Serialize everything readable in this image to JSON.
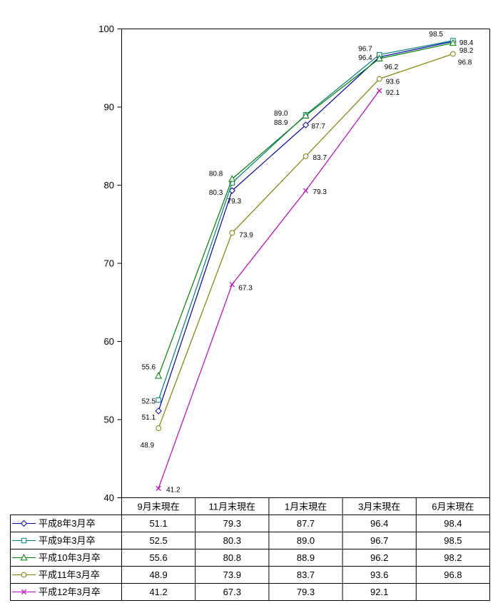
{
  "chart_data": {
    "type": "line",
    "title": "",
    "xlabel": "",
    "ylabel": "",
    "ylim": [
      40,
      100
    ],
    "ytick_step": 10,
    "yticks": [
      "100",
      "90",
      "80",
      "70",
      "60",
      "50",
      "40"
    ],
    "grid": false,
    "data_labels": true,
    "legend_position": "data-table-left-column",
    "value_format": "one-decimal",
    "categories": [
      "9月末現在",
      "11月末現在",
      "1月末現在",
      "3月末現在",
      "6月末現在"
    ],
    "series": [
      {
        "name": "平成8年3月卒",
        "marker": "diamond",
        "color": "#0000B0",
        "values": [
          51.1,
          79.3,
          87.7,
          96.4,
          98.4
        ],
        "label_offsets": [
          [
            -4,
            12,
            "e"
          ],
          [
            3,
            18,
            "m"
          ],
          [
            8,
            5,
            "s"
          ],
          [
            -10,
            4,
            "e"
          ],
          [
            9,
            5,
            "s"
          ]
        ]
      },
      {
        "name": "平成9年3月卒",
        "marker": "square",
        "color": "#008080",
        "values": [
          52.5,
          80.3,
          89.0,
          96.7,
          98.5
        ],
        "label_offsets": [
          [
            -4,
            5,
            "e"
          ],
          [
            -13,
            17,
            "e"
          ],
          [
            -25,
            1,
            "e"
          ],
          [
            -10,
            -5,
            "e"
          ],
          [
            -14,
            -6,
            "e"
          ]
        ]
      },
      {
        "name": "平成10年3月卒",
        "marker": "triangle",
        "color": "#008000",
        "values": [
          55.6,
          80.8,
          88.9,
          96.2,
          98.2
        ],
        "label_offsets": [
          [
            -4,
            -9,
            "e"
          ],
          [
            -13,
            -4,
            "e"
          ],
          [
            -25,
            13,
            "e"
          ],
          [
            7,
            15,
            "s"
          ],
          [
            9,
            14,
            "s"
          ]
        ]
      },
      {
        "name": "平成11年3月卒",
        "marker": "circle",
        "color": "#808000",
        "values": [
          48.9,
          73.9,
          83.7,
          93.6,
          96.8
        ],
        "label_offsets": [
          [
            -6,
            27,
            "e"
          ],
          [
            10,
            6,
            "s"
          ],
          [
            10,
            5,
            "s"
          ],
          [
            9,
            7,
            "s"
          ],
          [
            7,
            15,
            "s"
          ]
        ]
      },
      {
        "name": "平成12年3月卒",
        "marker": "x",
        "color": "#C000C0",
        "values": [
          41.2,
          67.3,
          79.3,
          92.1,
          null
        ],
        "label_offsets": [
          [
            11,
            5,
            "s"
          ],
          [
            9,
            8,
            "s"
          ],
          [
            10,
            5,
            "s"
          ],
          [
            9,
            6,
            "s"
          ],
          null
        ]
      }
    ]
  },
  "colors": {
    "axis": "#000000",
    "table_border": "#000000",
    "label_text": "#000000",
    "background": "#ffffff"
  }
}
